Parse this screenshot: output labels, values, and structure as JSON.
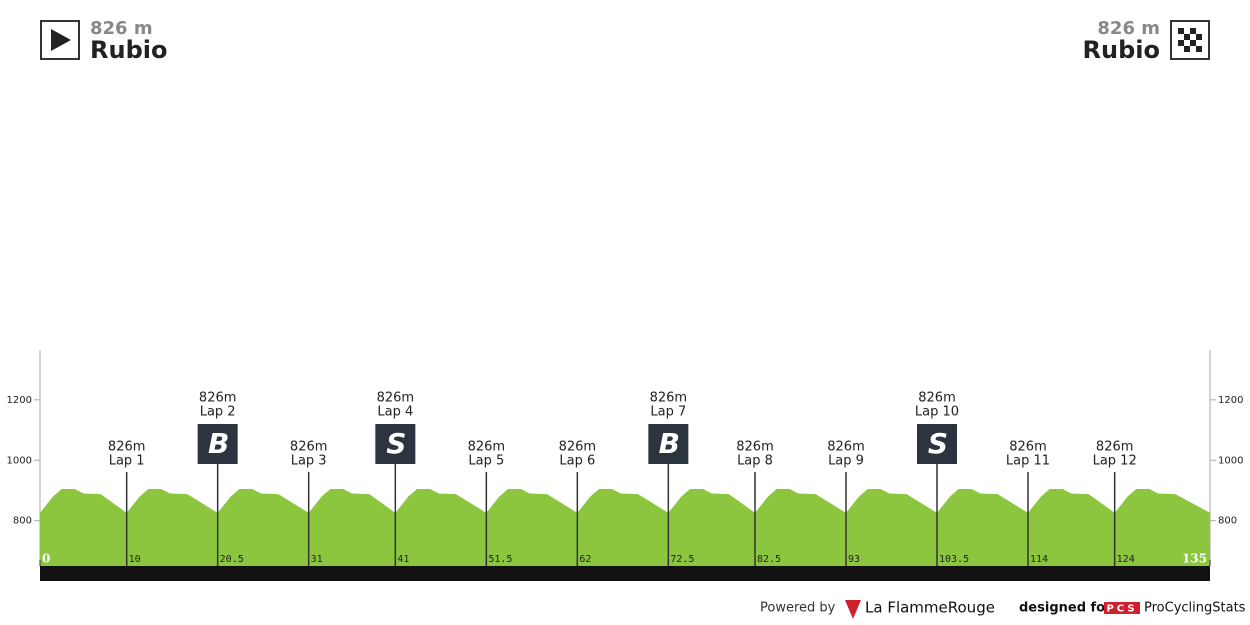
{
  "header": {
    "start": {
      "elevation": "826 m",
      "name": "Rubio"
    },
    "finish": {
      "elevation": "826 m",
      "name": "Rubio"
    }
  },
  "chart_data": {
    "type": "area",
    "x": [
      0,
      1.5,
      2.5,
      4,
      5,
      7,
      10,
      11.5,
      12.5,
      14,
      15,
      17,
      20.5,
      22,
      23,
      24.5,
      25.5,
      27.5,
      31,
      32.5,
      33.5,
      35,
      36,
      38,
      41,
      42.5,
      43.5,
      45,
      46,
      48,
      51.5,
      53,
      54,
      55.5,
      56.5,
      58.5,
      62,
      63.5,
      64.5,
      66,
      67,
      69,
      72.5,
      74,
      75,
      76.5,
      77.5,
      79.5,
      82.5,
      84,
      85,
      86.5,
      87.5,
      89.5,
      93,
      94.5,
      95.5,
      97,
      98,
      100,
      103.5,
      105,
      106,
      107.5,
      108.5,
      110.5,
      114,
      115.5,
      116.5,
      118,
      119,
      121,
      124,
      125.5,
      126.5,
      128,
      129,
      131,
      135
    ],
    "values": [
      826,
      880,
      905,
      905,
      890,
      888,
      826,
      880,
      905,
      905,
      890,
      888,
      826,
      880,
      905,
      905,
      890,
      888,
      826,
      880,
      905,
      905,
      890,
      888,
      826,
      880,
      905,
      905,
      890,
      888,
      826,
      880,
      905,
      905,
      890,
      888,
      826,
      880,
      905,
      905,
      890,
      888,
      826,
      880,
      905,
      905,
      890,
      888,
      826,
      880,
      905,
      905,
      890,
      888,
      826,
      880,
      905,
      905,
      890,
      888,
      826,
      880,
      905,
      905,
      890,
      888,
      826,
      880,
      905,
      905,
      890,
      888,
      826,
      880,
      905,
      905,
      890,
      888,
      826
    ],
    "color": "#8cc63f",
    "xlim": [
      0,
      135
    ],
    "xticks": [
      0,
      10,
      20.5,
      31,
      41,
      51.5,
      62,
      72.5,
      82.5,
      93,
      103.5,
      114,
      124,
      135
    ],
    "ylim": [
      650,
      1365
    ],
    "yticks": [
      800,
      1000,
      1200
    ],
    "markers": [
      {
        "x": 10,
        "elevation": "826m",
        "label": "Lap 1"
      },
      {
        "x": 20.5,
        "elevation": "826m",
        "label": "Lap 2",
        "icon": "B"
      },
      {
        "x": 31,
        "elevation": "826m",
        "label": "Lap 3"
      },
      {
        "x": 41,
        "elevation": "826m",
        "label": "Lap 4",
        "icon": "S"
      },
      {
        "x": 51.5,
        "elevation": "826m",
        "label": "Lap 5"
      },
      {
        "x": 62,
        "elevation": "826m",
        "label": "Lap 6"
      },
      {
        "x": 72.5,
        "elevation": "826m",
        "label": "Lap 7",
        "icon": "B"
      },
      {
        "x": 82.5,
        "elevation": "826m",
        "label": "Lap 8"
      },
      {
        "x": 93,
        "elevation": "826m",
        "label": "Lap 9"
      },
      {
        "x": 103.5,
        "elevation": "826m",
        "label": "Lap 10",
        "icon": "S"
      },
      {
        "x": 114,
        "elevation": "826m",
        "label": "Lap 11"
      },
      {
        "x": 124,
        "elevation": "826m",
        "label": "Lap 12"
      }
    ]
  },
  "footer": {
    "powered": "Powered by",
    "brand": "La FlammeRouge",
    "designed": "designed for",
    "pcs": "PCS",
    "site": "ProCyclingStats"
  }
}
